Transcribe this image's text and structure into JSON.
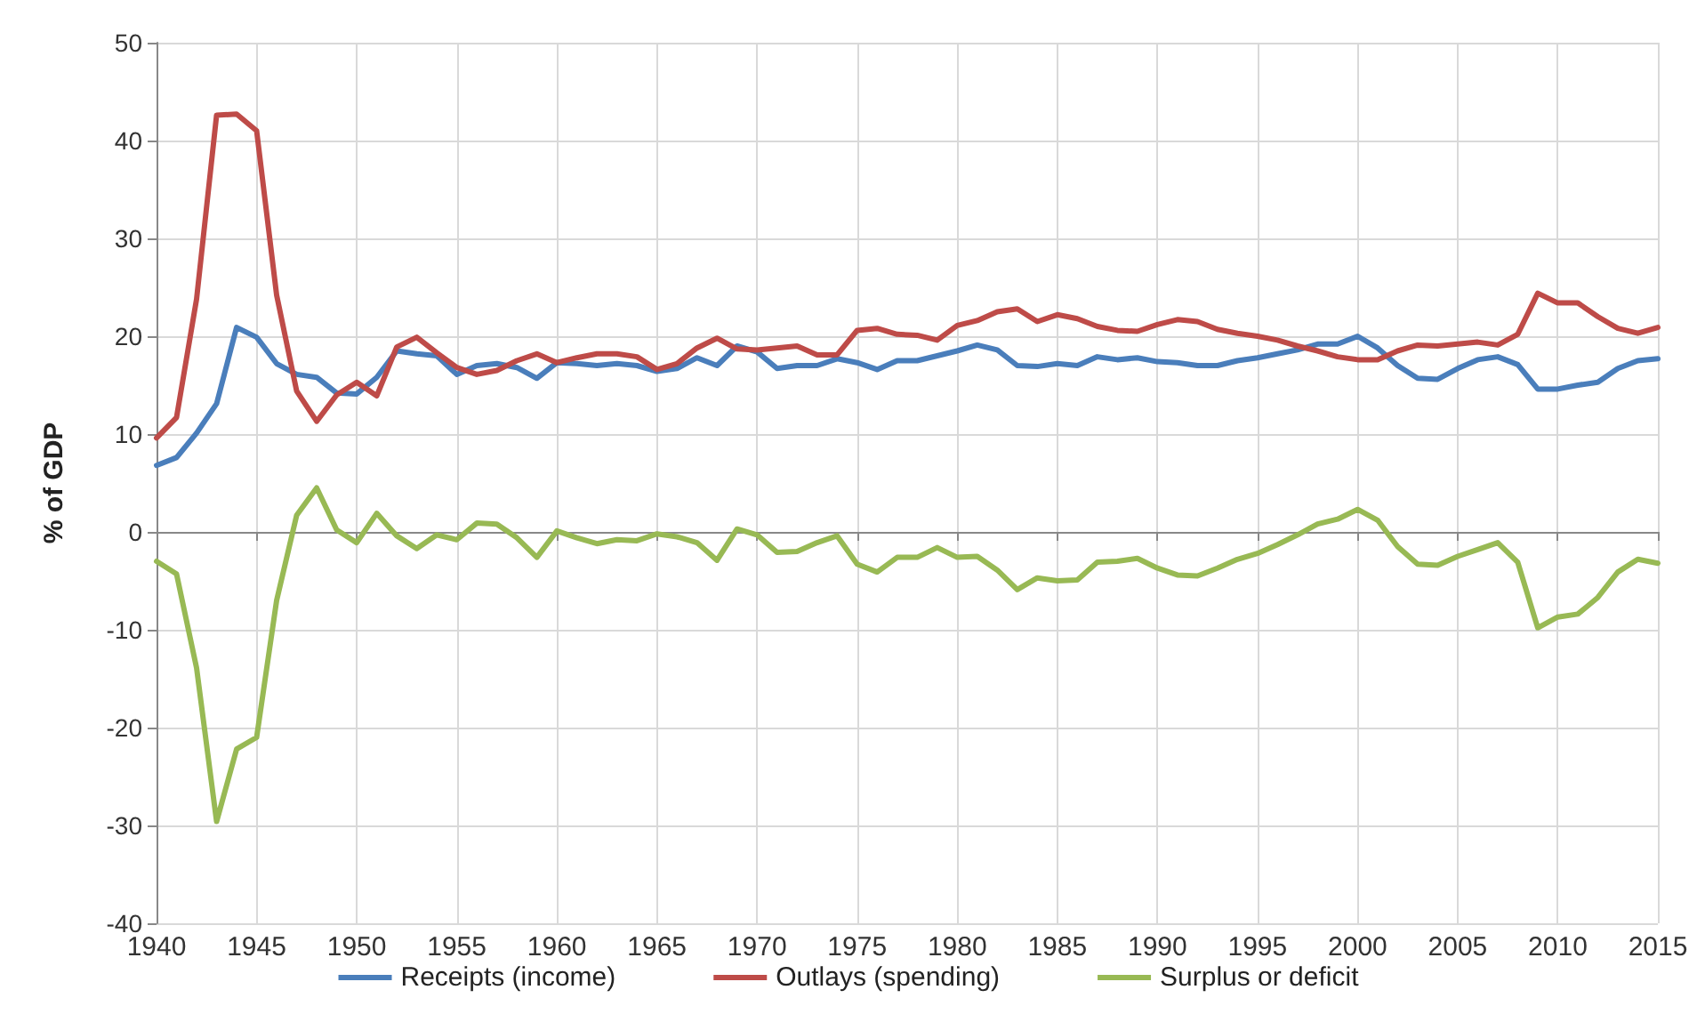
{
  "chart_data": {
    "type": "line",
    "ylabel": "% of GDP",
    "x": [
      1940,
      1941,
      1942,
      1943,
      1944,
      1945,
      1946,
      1947,
      1948,
      1949,
      1950,
      1951,
      1952,
      1953,
      1954,
      1955,
      1956,
      1957,
      1958,
      1959,
      1960,
      1961,
      1962,
      1963,
      1964,
      1965,
      1966,
      1967,
      1968,
      1969,
      1970,
      1971,
      1972,
      1973,
      1974,
      1975,
      1976,
      1977,
      1978,
      1979,
      1980,
      1981,
      1982,
      1983,
      1984,
      1985,
      1986,
      1987,
      1988,
      1989,
      1990,
      1991,
      1992,
      1993,
      1994,
      1995,
      1996,
      1997,
      1998,
      1999,
      2000,
      2001,
      2002,
      2003,
      2004,
      2005,
      2006,
      2007,
      2008,
      2009,
      2010,
      2011,
      2012,
      2013,
      2014,
      2015
    ],
    "series": [
      {
        "name": "Receipts (income)",
        "color": "#4a7ebb",
        "values": [
          6.8,
          7.6,
          10.1,
          13.1,
          20.9,
          19.9,
          17.2,
          16.1,
          15.8,
          14.2,
          14.1,
          15.8,
          18.5,
          18.2,
          18.0,
          16.1,
          17.0,
          17.2,
          16.8,
          15.7,
          17.3,
          17.2,
          17.0,
          17.2,
          17.0,
          16.4,
          16.7,
          17.8,
          17.0,
          19.0,
          18.4,
          16.7,
          17.0,
          17.0,
          17.7,
          17.3,
          16.6,
          17.5,
          17.5,
          18.0,
          18.5,
          19.1,
          18.6,
          17.0,
          16.9,
          17.2,
          17.0,
          17.9,
          17.6,
          17.8,
          17.4,
          17.3,
          17.0,
          17.0,
          17.5,
          17.8,
          18.2,
          18.6,
          19.2,
          19.2,
          20.0,
          18.8,
          17.0,
          15.7,
          15.6,
          16.7,
          17.6,
          17.9,
          17.1,
          14.6,
          14.6,
          15.0,
          15.3,
          16.7,
          17.5,
          17.7
        ]
      },
      {
        "name": "Outlays (spending)",
        "color": "#be4b48",
        "values": [
          9.6,
          11.7,
          23.8,
          42.6,
          42.7,
          41.0,
          24.2,
          14.4,
          11.3,
          14.0,
          15.3,
          13.9,
          18.9,
          19.9,
          18.3,
          16.8,
          16.1,
          16.5,
          17.5,
          18.2,
          17.3,
          17.8,
          18.2,
          18.2,
          17.9,
          16.6,
          17.2,
          18.8,
          19.8,
          18.7,
          18.6,
          18.8,
          19.0,
          18.1,
          18.1,
          20.6,
          20.8,
          20.2,
          20.1,
          19.6,
          21.1,
          21.6,
          22.5,
          22.8,
          21.5,
          22.2,
          21.8,
          21.0,
          20.6,
          20.5,
          21.2,
          21.7,
          21.5,
          20.7,
          20.3,
          20.0,
          19.6,
          19.0,
          18.5,
          17.9,
          17.6,
          17.6,
          18.5,
          19.1,
          19.0,
          19.2,
          19.4,
          19.1,
          20.2,
          24.4,
          23.4,
          23.4,
          22.0,
          20.8,
          20.3,
          20.9
        ]
      },
      {
        "name": "Surplus or deficit",
        "color": "#98b954",
        "values": [
          -3.0,
          -4.3,
          -13.9,
          -29.6,
          -22.2,
          -21.0,
          -7.0,
          1.7,
          4.5,
          0.2,
          -1.1,
          1.9,
          -0.4,
          -1.7,
          -0.3,
          -0.8,
          0.9,
          0.8,
          -0.6,
          -2.6,
          0.1,
          -0.6,
          -1.2,
          -0.8,
          -0.9,
          -0.2,
          -0.5,
          -1.1,
          -2.9,
          0.3,
          -0.3,
          -2.1,
          -2.0,
          -1.1,
          -0.4,
          -3.3,
          -4.1,
          -2.6,
          -2.6,
          -1.6,
          -2.6,
          -2.5,
          -3.9,
          -5.9,
          -4.7,
          -5.0,
          -4.9,
          -3.1,
          -3.0,
          -2.7,
          -3.7,
          -4.4,
          -4.5,
          -3.7,
          -2.8,
          -2.2,
          -1.3,
          -0.3,
          0.8,
          1.3,
          2.3,
          1.2,
          -1.5,
          -3.3,
          -3.4,
          -2.5,
          -1.8,
          -1.1,
          -3.1,
          -9.8,
          -8.7,
          -8.4,
          -6.7,
          -4.1,
          -2.8,
          -3.2
        ]
      }
    ],
    "xlim": [
      1940,
      2015
    ],
    "xticks": [
      1940,
      1945,
      1950,
      1955,
      1960,
      1965,
      1970,
      1975,
      1980,
      1985,
      1990,
      1995,
      2000,
      2005,
      2010,
      2015
    ],
    "ylim": [
      -40,
      50
    ],
    "yticks": [
      -40,
      -30,
      -20,
      -10,
      0,
      10,
      20,
      30,
      40,
      50
    ],
    "grid": true,
    "legend": "bottom",
    "marker": "none",
    "line_style": "solid"
  }
}
